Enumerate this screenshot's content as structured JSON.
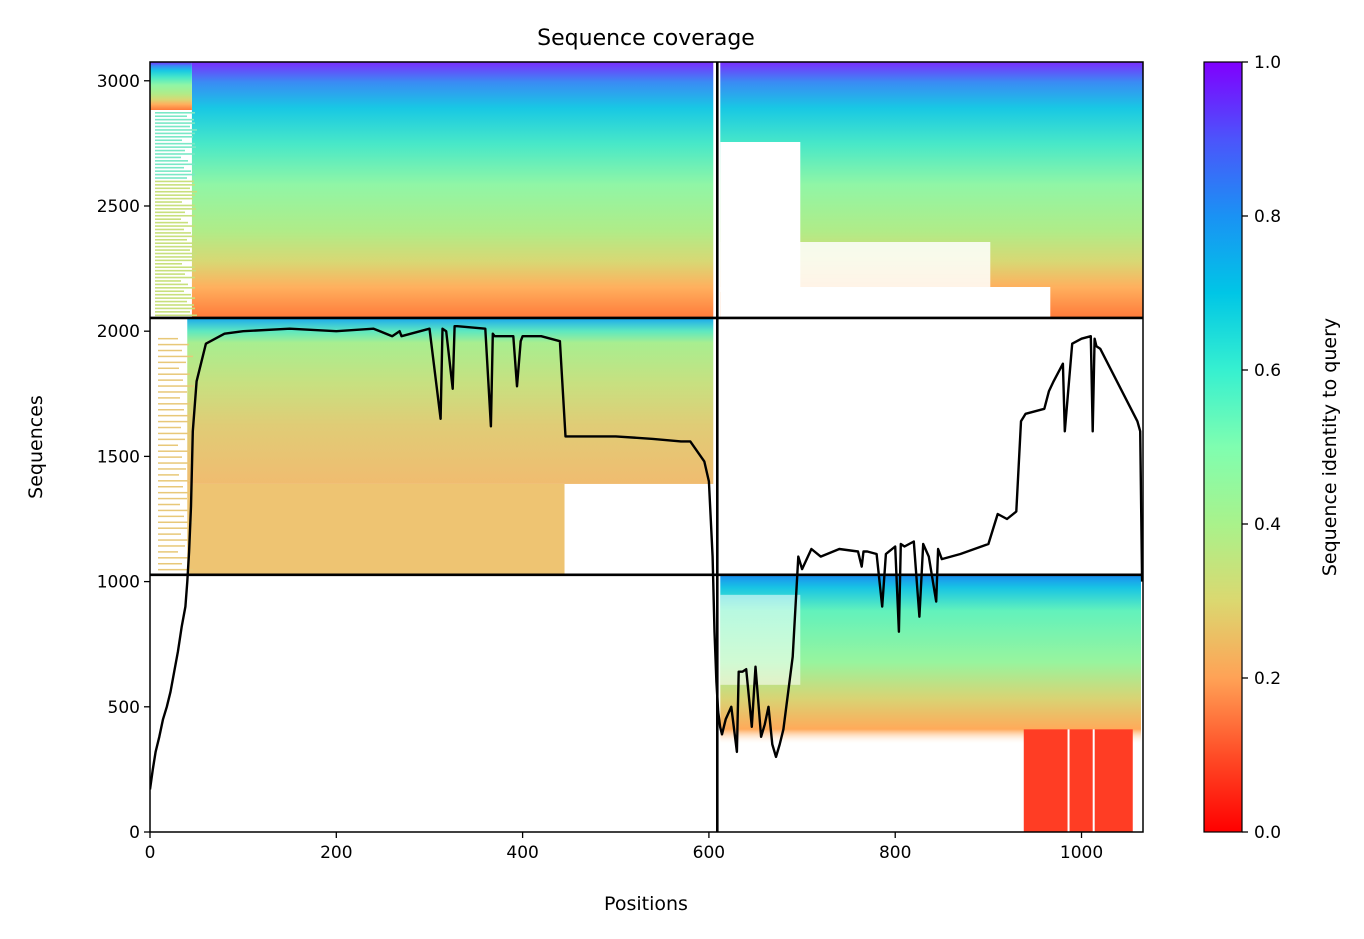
{
  "chart_data": {
    "type": "heatmap",
    "title": "Sequence coverage",
    "xlabel": "Positions",
    "ylabel": "Sequences",
    "colorbar_label": "Sequence identity to query",
    "xlim": [
      0,
      1066
    ],
    "ylim": [
      0,
      3075
    ],
    "xticks": [
      0,
      200,
      400,
      600,
      800,
      1000
    ],
    "yticks": [
      0,
      500,
      1000,
      1500,
      2000,
      2500,
      3000
    ],
    "colorbar_ticks": [
      0.0,
      0.2,
      0.4,
      0.6,
      0.8,
      1.0
    ],
    "colorbar_tick_labels": [
      "0.0",
      "0.2",
      "0.4",
      "0.6",
      "0.8",
      "1.0"
    ],
    "colormap": "rainbow_r",
    "grid": false,
    "block_boundaries": {
      "x": [
        609
      ],
      "y": [
        1027,
        2053
      ]
    },
    "coverage_blocks": [
      {
        "name": "top-left",
        "x": [
          0,
          609
        ],
        "y": [
          2053,
          3075
        ],
        "identity_range": [
          0.2,
          1.0
        ],
        "start_position_min": 45
      },
      {
        "name": "top-right",
        "x": [
          609,
          1066
        ],
        "y": [
          2053,
          3075
        ],
        "identity_range": [
          0.2,
          1.0
        ]
      },
      {
        "name": "middle-left",
        "x": [
          0,
          609
        ],
        "y": [
          1027,
          2053
        ],
        "identity_range": [
          0.28,
          0.8
        ],
        "upper-rows_end": 609,
        "lower-rows_end": 445
      },
      {
        "name": "bottom-right",
        "x": [
          609,
          1066
        ],
        "y": [
          0,
          1027
        ],
        "identity_range": [
          0.05,
          0.85
        ],
        "low_identity_patch": {
          "x": [
            938,
            1055
          ],
          "y": [
            0,
            410
          ]
        }
      }
    ],
    "series": [
      {
        "type": "line",
        "x": [
          0,
          3,
          6,
          10,
          14,
          18,
          22,
          26,
          30,
          34,
          38,
          40,
          42,
          44,
          46,
          50,
          60,
          80,
          100,
          150,
          200,
          240,
          260,
          268,
          270,
          300,
          312,
          314,
          318,
          325,
          327,
          330,
          360,
          366,
          368,
          370,
          390,
          394,
          398,
          400,
          420,
          440,
          446,
          448,
          500,
          540,
          570,
          580,
          595,
          600,
          604,
          606,
          608,
          610,
          612,
          614,
          618,
          624,
          630,
          632,
          636,
          640,
          646,
          650,
          656,
          660,
          664,
          668,
          672,
          676,
          680,
          690,
          696,
          700,
          710,
          720,
          740,
          760,
          764,
          766,
          770,
          780,
          786,
          790,
          800,
          804,
          806,
          810,
          820,
          826,
          830,
          836,
          844,
          846,
          850,
          870,
          900,
          910,
          920,
          930,
          935,
          940,
          960,
          965,
          970,
          980,
          982,
          990,
          1000,
          1010,
          1012,
          1014,
          1016,
          1020,
          1060,
          1063,
          1065
        ],
        "y": [
          170,
          250,
          320,
          380,
          450,
          500,
          560,
          640,
          720,
          820,
          900,
          1000,
          1120,
          1300,
          1600,
          1800,
          1950,
          1990,
          2000,
          2010,
          2000,
          2010,
          1980,
          2000,
          1980,
          2010,
          1650,
          2010,
          2000,
          1770,
          2020,
          2020,
          2010,
          1620,
          1990,
          1980,
          1980,
          1780,
          1960,
          1980,
          1980,
          1960,
          1580,
          1580,
          1580,
          1570,
          1560,
          1560,
          1480,
          1400,
          1100,
          800,
          600,
          480,
          420,
          390,
          450,
          500,
          320,
          640,
          640,
          650,
          420,
          660,
          380,
          430,
          500,
          350,
          300,
          350,
          410,
          700,
          1100,
          1050,
          1130,
          1100,
          1130,
          1120,
          1060,
          1120,
          1120,
          1110,
          900,
          1110,
          1140,
          800,
          1150,
          1140,
          1160,
          860,
          1150,
          1100,
          920,
          1130,
          1090,
          1110,
          1150,
          1270,
          1250,
          1280,
          1640,
          1670,
          1690,
          1760,
          1800,
          1870,
          1600,
          1950,
          1970,
          1980,
          1600,
          1970,
          1940,
          1930,
          1640,
          1600,
          1000
        ]
      }
    ]
  }
}
